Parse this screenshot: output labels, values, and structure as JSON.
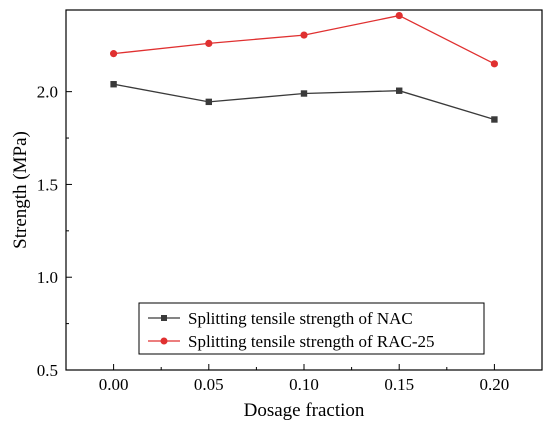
{
  "chart_data": {
    "type": "line",
    "title": "",
    "xlabel": "Dosage fraction",
    "ylabel": "Strength (MPa)",
    "x": [
      0.0,
      0.05,
      0.1,
      0.15,
      0.2
    ],
    "x_tick_labels": [
      "0.00",
      "0.05",
      "0.10",
      "0.15",
      "0.20"
    ],
    "xlim": [
      -0.025,
      0.225
    ],
    "ylim": [
      0.5,
      2.44
    ],
    "y_tick_labels": [
      "0.5",
      "1.0",
      "1.5",
      "2.0"
    ],
    "y_ticks": [
      0.5,
      1.0,
      1.5,
      2.0
    ],
    "grid": false,
    "legend_position": "bottom-center",
    "series": [
      {
        "name": "Splitting tensile strength of NAC",
        "values": [
          2.04,
          1.945,
          1.99,
          2.005,
          1.85
        ],
        "color": "#3a3a3a",
        "marker": "square"
      },
      {
        "name": "Splitting tensile strength of RAC-25",
        "values": [
          2.205,
          2.26,
          2.305,
          2.41,
          2.15
        ],
        "color": "#e03030",
        "marker": "circle"
      }
    ]
  }
}
